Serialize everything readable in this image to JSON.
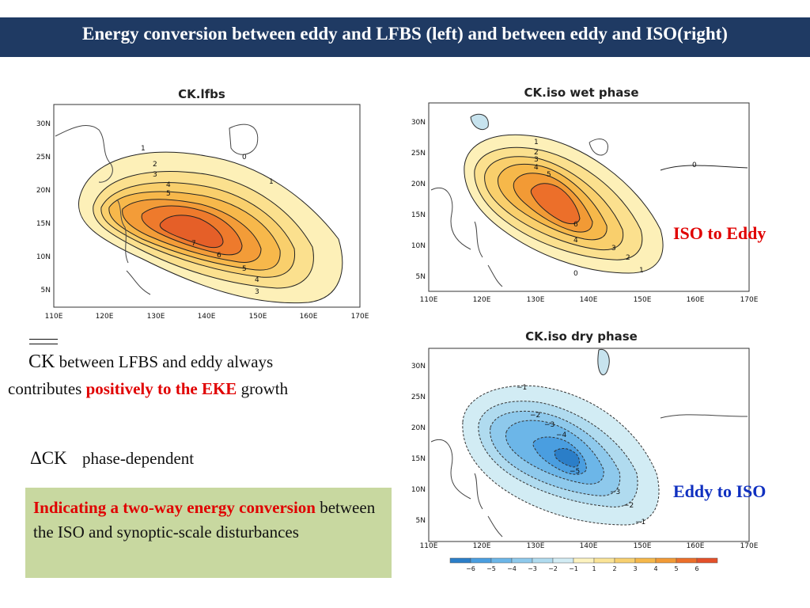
{
  "slide": {
    "title": "Energy conversion between eddy and LFBS (left) and between eddy and ISO(right)"
  },
  "panels": {
    "lfbs": {
      "title": "CK.lfbs",
      "lat_ticks": [
        "30N",
        "25N",
        "20N",
        "15N",
        "10N",
        "5N"
      ],
      "lon_ticks": [
        "110E",
        "120E",
        "130E",
        "140E",
        "150E",
        "160E",
        "170E"
      ],
      "contour_labels": [
        "1",
        "2",
        "3",
        "4",
        "5",
        "7",
        "6",
        "5",
        "4",
        "3",
        "1",
        "0"
      ]
    },
    "wet": {
      "title": "CK.iso  wet  phase",
      "lat_ticks": [
        "30N",
        "25N",
        "20N",
        "15N",
        "10N",
        "5N"
      ],
      "lon_ticks": [
        "110E",
        "120E",
        "130E",
        "140E",
        "150E",
        "160E",
        "170E"
      ],
      "contour_labels": [
        "1",
        "2",
        "3",
        "4",
        "5",
        "6",
        "4",
        "3",
        "2",
        "1",
        "0",
        "0"
      ]
    },
    "dry": {
      "title": "CK.iso  dry  phase",
      "lat_ticks": [
        "30N",
        "25N",
        "20N",
        "15N",
        "10N",
        "5N"
      ],
      "lon_ticks": [
        "110E",
        "120E",
        "130E",
        "140E",
        "150E",
        "160E",
        "170E"
      ],
      "contour_labels": [
        "−1",
        "−2",
        "−3",
        "−4",
        "−5",
        "−3",
        "−2",
        "−1"
      ]
    }
  },
  "colorbar": {
    "labels": [
      "−6",
      "−5",
      "−4",
      "−3",
      "−2",
      "−1",
      "1",
      "2",
      "3",
      "4",
      "5",
      "6"
    ],
    "colors": [
      "#2b7ec8",
      "#4a9ee0",
      "#6cb6e8",
      "#8ec9ec",
      "#b0dbef",
      "#d2ecf4",
      "#fdf3c0",
      "#fbe497",
      "#f8d070",
      "#f6b84a",
      "#f29a35",
      "#ec6f2a",
      "#e4502a"
    ]
  },
  "labels": {
    "iso_to_eddy": "ISO to Eddy",
    "eddy_to_iso": "Eddy to ISO"
  },
  "notes": {
    "ck_symbol": "CK",
    "ck_text_1": " between LFBS and eddy always",
    "ck_text_2": "contributes ",
    "ck_highlight": "positively to the EKE",
    "ck_text_3": " growth",
    "delta_symbol": "ΔCK",
    "delta_text": "phase-dependent",
    "box_highlight": "Indicating a two-way energy conversion",
    "box_text": " between the ISO and synoptic-scale disturbances"
  },
  "colors": {
    "header_bg": "#1f3a63",
    "highlight_red": "#e00000",
    "eddy_to_iso_blue": "#1030c0",
    "box_bg": "#c8d8a0"
  }
}
